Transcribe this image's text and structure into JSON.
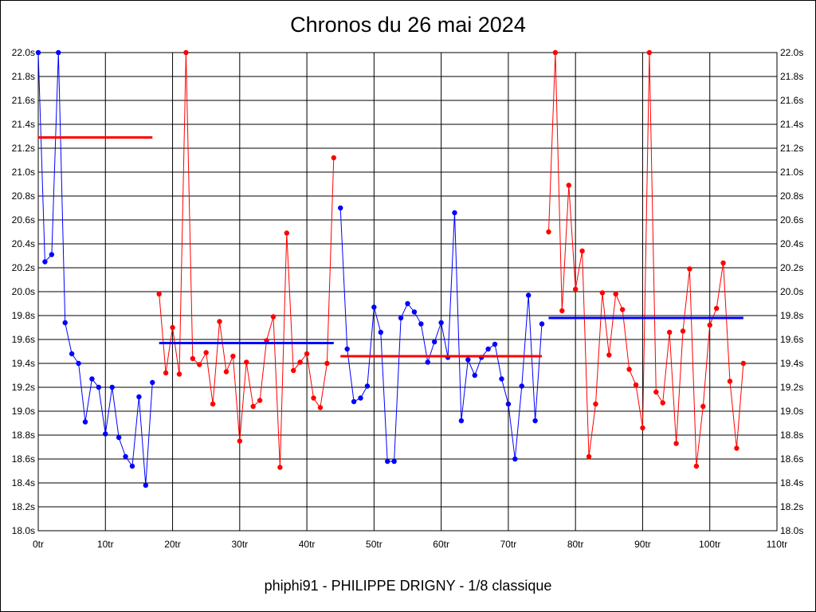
{
  "chart_data": {
    "type": "line",
    "title": "Chronos du 26 mai 2024",
    "subtitle": "phiphi91 - PHILIPPE DRIGNY - 1/8 classique",
    "xlim": [
      0,
      110
    ],
    "ylim": [
      18.0,
      22.0
    ],
    "x_ticks": [
      0,
      10,
      20,
      30,
      40,
      50,
      60,
      70,
      80,
      90,
      100,
      110
    ],
    "x_tick_suffix": "tr",
    "y_ticks": [
      18.0,
      18.2,
      18.4,
      18.6,
      18.8,
      19.0,
      19.2,
      19.4,
      19.6,
      19.8,
      20.0,
      20.2,
      20.4,
      20.6,
      20.8,
      21.0,
      21.2,
      21.4,
      21.6,
      21.8,
      22.0
    ],
    "y_tick_suffix": "s",
    "grid": true,
    "colors": {
      "blue": "#0000ff",
      "red": "#ff0000"
    },
    "series": [
      {
        "color": "#0000ff",
        "x": [
          0,
          1,
          2,
          3,
          4,
          5,
          6,
          7,
          8,
          9,
          10,
          11,
          12,
          13,
          14,
          15,
          16,
          17
        ],
        "y": [
          22.0,
          20.25,
          20.31,
          22.0,
          19.74,
          19.48,
          19.4,
          18.91,
          19.27,
          19.2,
          18.81,
          19.2,
          18.78,
          18.62,
          18.54,
          19.12,
          18.38,
          19.24
        ]
      },
      {
        "color": "#ff0000",
        "x": [
          18,
          19,
          20,
          21,
          22,
          23,
          24,
          25,
          26,
          27,
          28,
          29,
          30,
          31,
          32,
          33,
          34,
          35,
          36,
          37,
          38,
          39,
          40,
          41,
          42,
          43,
          44
        ],
        "y": [
          19.98,
          19.32,
          19.7,
          19.31,
          22.0,
          19.44,
          19.39,
          19.49,
          19.06,
          19.75,
          19.33,
          19.46,
          18.75,
          19.41,
          19.04,
          19.09,
          19.59,
          19.79,
          18.53,
          20.49,
          19.34,
          19.41,
          19.48,
          19.11,
          19.03,
          19.4,
          21.12
        ]
      },
      {
        "color": "#0000ff",
        "x": [
          45,
          46,
          47,
          48,
          49,
          50,
          51,
          52,
          53,
          54,
          55,
          56,
          57,
          58,
          59,
          60,
          61,
          62,
          63,
          64,
          65,
          66,
          67,
          68,
          69,
          70,
          71,
          72,
          73,
          74,
          75
        ],
        "y": [
          20.7,
          19.52,
          19.08,
          19.11,
          19.21,
          19.87,
          19.66,
          18.58,
          18.58,
          19.78,
          19.9,
          19.83,
          19.73,
          19.41,
          19.58,
          19.74,
          19.45,
          20.66,
          18.92,
          19.43,
          19.3,
          19.45,
          19.52,
          19.56,
          19.27,
          19.06,
          18.6,
          19.21,
          19.97,
          18.92,
          19.73
        ]
      },
      {
        "color": "#ff0000",
        "x": [
          76,
          77,
          78,
          79,
          80,
          81,
          82,
          83,
          84,
          85,
          86,
          87,
          88,
          89,
          90,
          91,
          92,
          93,
          94,
          95,
          96,
          97,
          98,
          99,
          100,
          101,
          102,
          103,
          104,
          105
        ],
        "y": [
          20.5,
          22.0,
          19.84,
          20.89,
          20.02,
          20.34,
          18.62,
          19.06,
          19.99,
          19.47,
          19.98,
          19.85,
          19.35,
          19.22,
          18.86,
          22.0,
          19.16,
          19.07,
          19.66,
          18.73,
          19.67,
          20.19,
          18.54,
          19.04,
          19.72,
          19.86,
          20.24,
          19.25,
          18.69,
          19.4
        ]
      }
    ],
    "averages": [
      {
        "color": "#ff0000",
        "x_start": 0,
        "x_end": 17,
        "y": 21.29
      },
      {
        "color": "#0000ff",
        "x_start": 18,
        "x_end": 44,
        "y": 19.57
      },
      {
        "color": "#ff0000",
        "x_start": 45,
        "x_end": 75,
        "y": 19.46
      },
      {
        "color": "#0000ff",
        "x_start": 76,
        "x_end": 105,
        "y": 19.78
      }
    ]
  }
}
